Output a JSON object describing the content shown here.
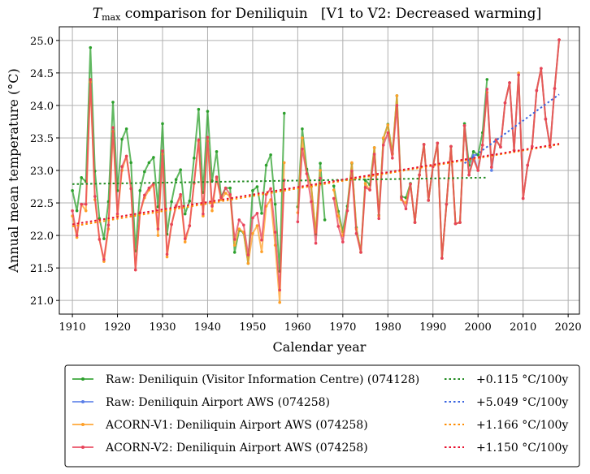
{
  "chart_data": {
    "type": "line",
    "title_var": "T",
    "title_sub": "max",
    "title_rest": " comparison for Deniliquin   [V1 to V2: Decreased warming]",
    "xlabel": "Calendar year",
    "ylabel": "Annual mean temperature (°C)",
    "xlim": [
      1907.1,
      2022.5
    ],
    "ylim": [
      20.79,
      25.21
    ],
    "xticks": [
      1910,
      1920,
      1930,
      1940,
      1950,
      1960,
      1970,
      1980,
      1990,
      2000,
      2010,
      2020
    ],
    "yticks": [
      21.0,
      21.5,
      22.0,
      22.5,
      23.0,
      23.5,
      24.0,
      24.5,
      25.0
    ],
    "grid": true,
    "legend_position": "below",
    "series": [
      {
        "name": "Raw: Deniliquin (Visitor Information Centre) (074128)",
        "color": "#2ca02c",
        "trend_label": "+0.115 °C/100y",
        "trend_color": "#228b22",
        "trend": [
          [
            1910,
            22.79
          ],
          [
            2002,
            22.89
          ]
        ],
        "x": [
          1910,
          1911,
          1912,
          1913,
          1914,
          1915,
          1916,
          1917,
          1918,
          1919,
          1920,
          1921,
          1922,
          1923,
          1924,
          1925,
          1926,
          1927,
          1928,
          1929,
          1930,
          1931,
          1932,
          1933,
          1934,
          1935,
          1936,
          1937,
          1938,
          1939,
          1940,
          1941,
          1942,
          1943,
          1944,
          1945,
          1946,
          1947,
          1948,
          1949,
          1950,
          1951,
          1952,
          1953,
          1954,
          1955,
          1956,
          1957,
          null,
          1960,
          1961,
          1962,
          1963,
          1964,
          1965,
          1966,
          null,
          1968,
          1969,
          1970,
          1971,
          1972,
          1973,
          1974,
          1975,
          1976,
          1977,
          1978,
          1979,
          1980,
          1981,
          1982,
          1983,
          1984,
          1985,
          1986,
          1987,
          1988,
          1989,
          1990,
          1991,
          1992,
          1993,
          1994,
          1995,
          1996,
          1997,
          1998,
          1999,
          2000,
          2001,
          2002
        ],
        "values": [
          22.69,
          22.38,
          22.89,
          22.83,
          24.89,
          22.99,
          22.26,
          21.95,
          22.52,
          24.05,
          22.69,
          23.48,
          23.64,
          23.12,
          21.76,
          22.69,
          22.98,
          23.12,
          23.2,
          22.44,
          23.72,
          22.02,
          22.52,
          22.86,
          23.01,
          22.33,
          22.53,
          23.19,
          23.94,
          22.66,
          23.91,
          22.84,
          23.29,
          22.59,
          22.73,
          22.73,
          21.74,
          22.08,
          22.04,
          21.57,
          22.69,
          22.75,
          22.34,
          23.08,
          23.24,
          22.48,
          21.45,
          23.88,
          null,
          22.44,
          23.64,
          23.02,
          22.75,
          22.02,
          23.11,
          22.24,
          null,
          22.76,
          22.37,
          22.06,
          22.45,
          23.11,
          22.12,
          21.74,
          22.85,
          22.78,
          23.35,
          22.31,
          23.49,
          23.71,
          23.26,
          24.15,
          22.6,
          22.58,
          22.8,
          22.2,
          22.93,
          23.4,
          22.54,
          23.06,
          23.42,
          21.65,
          22.48,
          23.37,
          22.18,
          22.2,
          23.72,
          23.08,
          23.29,
          23.24,
          23.58,
          24.4
        ]
      },
      {
        "name": "Raw: Deniliquin Airport AWS (074258)",
        "color": "#5b7fe8",
        "trend_label": "+5.049 °C/100y",
        "trend_color": "#3a64e0",
        "trend": [
          [
            1997,
            23.11
          ],
          [
            2018,
            24.17
          ]
        ],
        "x": [
          1997,
          1998,
          1999,
          2000,
          2001,
          2002,
          2003,
          2004,
          2005,
          2006,
          2007,
          2008,
          2009,
          2010,
          2011,
          2012,
          2013,
          2014,
          2015,
          2016,
          2017,
          2018
        ],
        "values": [
          23.69,
          22.93,
          23.23,
          23.0,
          23.39,
          24.25,
          23.0,
          23.47,
          23.36,
          24.04,
          24.35,
          23.31,
          24.47,
          22.57,
          23.08,
          23.37,
          24.23,
          24.57,
          23.79,
          23.36,
          24.26,
          25.01
        ]
      },
      {
        "name": "ACORN-V1: Deniliquin Airport AWS (074258)",
        "color": "#ffa028",
        "trend_label": "+1.166 °C/100y",
        "trend_color": "#ff8c00",
        "trend": [
          [
            1910,
            22.14
          ],
          [
            2018,
            23.4
          ]
        ],
        "x": [
          1910,
          1911,
          1912,
          1913,
          1914,
          1915,
          1916,
          1917,
          1918,
          1919,
          1920,
          1921,
          1922,
          1923,
          1924,
          1925,
          1926,
          1927,
          1928,
          1929,
          1930,
          1931,
          1932,
          1933,
          1934,
          1935,
          1936,
          1937,
          1938,
          1939,
          1940,
          1941,
          1942,
          1943,
          1944,
          1945,
          1946,
          1947,
          1948,
          1949,
          1950,
          1951,
          1952,
          1953,
          1954,
          1955,
          1956,
          1957,
          null,
          1960,
          1961,
          1962,
          1963,
          1964,
          1965,
          null,
          1968,
          1969,
          1970,
          1971,
          1972,
          1973,
          1974,
          1975,
          1976,
          1977,
          1978,
          1979,
          1980,
          1981,
          1982,
          1983,
          1984,
          1985,
          1986,
          1987,
          1988,
          1989,
          1990,
          1991,
          1992,
          1993,
          1994,
          1995,
          1996,
          1997,
          1998,
          1999,
          2000,
          2001,
          2002,
          2003,
          2004,
          2005,
          2006,
          2007,
          2008,
          2009,
          2010,
          2011,
          2012,
          2013,
          2014,
          2015,
          2016,
          2017,
          2018
        ],
        "values": [
          22.3,
          21.97,
          22.48,
          22.38,
          24.36,
          22.55,
          21.94,
          21.6,
          22.1,
          23.6,
          22.3,
          23.0,
          23.22,
          22.72,
          21.47,
          22.35,
          22.58,
          22.7,
          22.78,
          22.0,
          23.25,
          21.67,
          22.17,
          22.44,
          22.6,
          21.9,
          22.15,
          22.8,
          23.45,
          22.3,
          23.45,
          22.38,
          22.88,
          22.55,
          22.65,
          22.6,
          21.85,
          22.1,
          22.05,
          21.57,
          22.03,
          22.15,
          21.75,
          22.45,
          22.55,
          21.85,
          20.97,
          23.12,
          null,
          22.35,
          23.5,
          22.95,
          22.75,
          22.05,
          23.0,
          null,
          22.7,
          22.3,
          22.0,
          22.38,
          23.12,
          22.1,
          21.74,
          22.8,
          22.7,
          23.35,
          22.3,
          23.5,
          23.7,
          23.25,
          24.15,
          22.55,
          22.5,
          22.79,
          22.2,
          22.93,
          23.4,
          22.54,
          23.06,
          23.42,
          21.65,
          22.48,
          23.37,
          22.18,
          22.2,
          23.69,
          22.93,
          23.18,
          23.0,
          23.39,
          24.2,
          23.05,
          23.47,
          23.36,
          24.04,
          24.35,
          23.31,
          24.5,
          22.57,
          23.08,
          23.37,
          24.23,
          24.57,
          23.79,
          23.36,
          24.26,
          25.01
        ]
      },
      {
        "name": "ACORN-V2: Deniliquin Airport AWS (074258)",
        "color": "#e8435a",
        "trend_label": "+1.150 °C/100y",
        "trend_color": "#e8102e",
        "trend": [
          [
            1910,
            22.17
          ],
          [
            2018,
            23.41
          ]
        ],
        "x": [
          1910,
          1911,
          1912,
          1913,
          1914,
          1915,
          1916,
          1917,
          1918,
          1919,
          1920,
          1921,
          1922,
          1923,
          1924,
          1925,
          1926,
          1927,
          1928,
          1929,
          1930,
          1931,
          1932,
          1933,
          1934,
          1935,
          1936,
          1937,
          1938,
          1939,
          1940,
          1941,
          1942,
          1943,
          1944,
          1945,
          1946,
          1947,
          1948,
          1949,
          1950,
          1951,
          1952,
          1953,
          1954,
          1955,
          1956,
          1957,
          null,
          1960,
          1961,
          1962,
          1963,
          1964,
          1965,
          null,
          1968,
          1969,
          1970,
          1971,
          1972,
          1973,
          1974,
          1975,
          1976,
          1977,
          1978,
          1979,
          1980,
          1981,
          1982,
          1983,
          1984,
          1985,
          1986,
          1987,
          1988,
          1989,
          1990,
          1991,
          1992,
          1993,
          1994,
          1995,
          1996,
          1997,
          1998,
          1999,
          2000,
          2001,
          2002,
          2003,
          2004,
          2005,
          2006,
          2007,
          2008,
          2009,
          2010,
          2011,
          2012,
          2013,
          2014,
          2015,
          2016,
          2017,
          2018
        ],
        "values": [
          22.38,
          22.0,
          22.48,
          22.48,
          24.4,
          22.6,
          21.94,
          21.63,
          22.16,
          23.66,
          22.33,
          23.06,
          23.22,
          22.72,
          21.47,
          22.35,
          22.62,
          22.73,
          22.8,
          22.1,
          23.3,
          21.71,
          22.17,
          22.46,
          22.63,
          21.95,
          22.15,
          22.81,
          23.47,
          22.33,
          23.51,
          22.45,
          22.9,
          22.58,
          22.73,
          22.63,
          21.94,
          22.24,
          22.16,
          21.7,
          22.27,
          22.34,
          21.93,
          22.63,
          22.72,
          22.05,
          21.16,
          22.85,
          null,
          22.21,
          23.33,
          22.95,
          22.52,
          21.88,
          22.88,
          null,
          22.57,
          22.14,
          21.9,
          22.38,
          22.99,
          22.03,
          21.74,
          22.74,
          22.7,
          23.25,
          22.26,
          23.39,
          23.58,
          23.19,
          24.0,
          22.58,
          22.41,
          22.79,
          22.2,
          22.93,
          23.4,
          22.54,
          23.06,
          23.42,
          21.65,
          22.48,
          23.37,
          22.18,
          22.2,
          23.69,
          22.93,
          23.18,
          23.0,
          23.39,
          24.25,
          23.05,
          23.47,
          23.36,
          24.04,
          24.35,
          23.31,
          24.47,
          22.57,
          23.08,
          23.37,
          24.23,
          24.57,
          23.79,
          23.36,
          24.26,
          25.01
        ]
      }
    ]
  }
}
